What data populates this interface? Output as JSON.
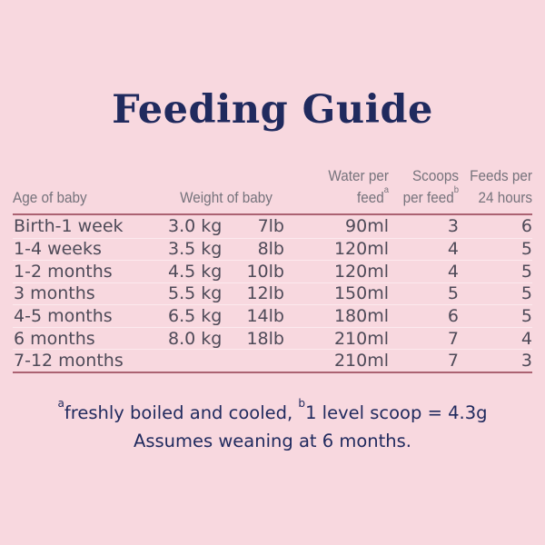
{
  "title": "Feeding Guide",
  "colors": {
    "background": "#f8d8df",
    "title_navy": "#202a5e",
    "header_gray": "#76737c",
    "body_text": "#4e4a58",
    "rule_rose": "#ab6272",
    "row_separator": "#fceaee"
  },
  "table": {
    "headers": {
      "age": "Age of baby",
      "weight": "Weight of baby",
      "water_line1": "Water per",
      "water_line2": "feed",
      "water_sup": "a",
      "scoops_line1": "Scoops",
      "scoops_line2": "per feed",
      "scoops_sup": "b",
      "feeds_line1": "Feeds per",
      "feeds_line2": "24 hours"
    },
    "rows": [
      {
        "age": "Birth-1 week",
        "kg": "3.0 kg",
        "lb": "7lb",
        "water": "90ml",
        "scoops": "3",
        "feeds": "6"
      },
      {
        "age": "1-4 weeks",
        "kg": "3.5 kg",
        "lb": "8lb",
        "water": "120ml",
        "scoops": "4",
        "feeds": "5"
      },
      {
        "age": "1-2 months",
        "kg": "4.5 kg",
        "lb": "10lb",
        "water": "120ml",
        "scoops": "4",
        "feeds": "5"
      },
      {
        "age": "3 months",
        "kg": "5.5 kg",
        "lb": "12lb",
        "water": "150ml",
        "scoops": "5",
        "feeds": "5"
      },
      {
        "age": "4-5 months",
        "kg": "6.5 kg",
        "lb": "14lb",
        "water": "180ml",
        "scoops": "6",
        "feeds": "5"
      },
      {
        "age": "6 months",
        "kg": "8.0 kg",
        "lb": "18lb",
        "water": "210ml",
        "scoops": "7",
        "feeds": "4"
      },
      {
        "age": "7-12 months",
        "kg": "",
        "lb": "",
        "water": "210ml",
        "scoops": "7",
        "feeds": "3"
      }
    ]
  },
  "footnotes": {
    "sup_a": "a",
    "note_a": "freshly boiled and cooled, ",
    "sup_b": "b",
    "note_b": "1 level scoop = 4.3g",
    "line2": "Assumes weaning at 6 months."
  },
  "chart_data": {
    "type": "table",
    "title": "Feeding Guide",
    "columns": [
      "Age of baby",
      "Weight of baby (kg)",
      "Weight of baby (lb)",
      "Water per feed (a)",
      "Scoops per feed (b)",
      "Feeds per 24 hours"
    ],
    "rows": [
      [
        "Birth-1 week",
        "3.0 kg",
        "7lb",
        "90ml",
        3,
        6
      ],
      [
        "1-4 weeks",
        "3.5 kg",
        "8lb",
        "120ml",
        4,
        5
      ],
      [
        "1-2 months",
        "4.5 kg",
        "10lb",
        "120ml",
        4,
        5
      ],
      [
        "3 months",
        "5.5 kg",
        "12lb",
        "150ml",
        5,
        5
      ],
      [
        "4-5 months",
        "6.5 kg",
        "14lb",
        "180ml",
        6,
        5
      ],
      [
        "6 months",
        "8.0 kg",
        "18lb",
        "210ml",
        7,
        4
      ],
      [
        "7-12 months",
        "",
        "",
        "210ml",
        7,
        3
      ]
    ],
    "footnotes": [
      "a freshly boiled and cooled",
      "b 1 level scoop = 4.3g",
      "Assumes weaning at 6 months."
    ]
  }
}
